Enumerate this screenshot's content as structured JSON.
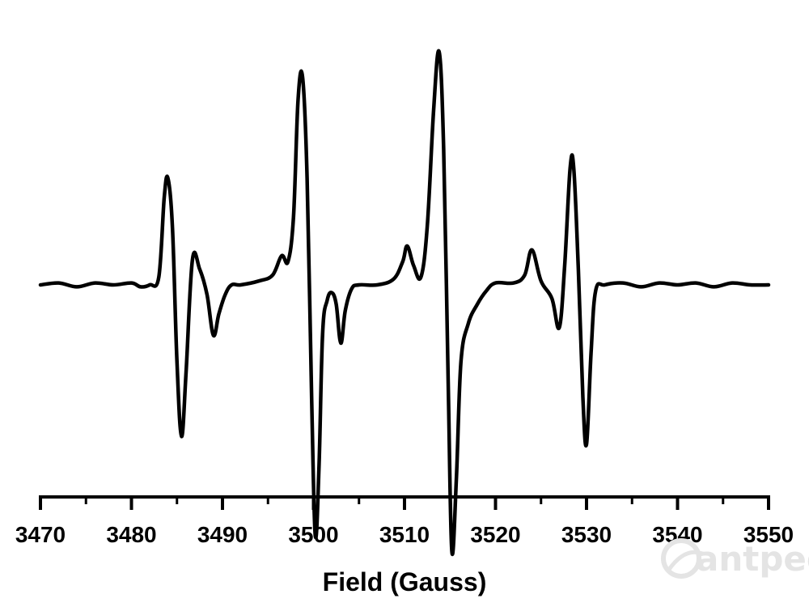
{
  "chart_data": {
    "type": "line",
    "title": "",
    "xlabel": "Field (Gauss)",
    "ylabel": "",
    "xlim": [
      3470,
      3550
    ],
    "ylim": [
      -1,
      1
    ],
    "xticks": [
      3470,
      3480,
      3490,
      3500,
      3510,
      3520,
      3530,
      3540,
      3550
    ],
    "xtick_labels": [
      "3470",
      "3480",
      "3490",
      "3500",
      "3510",
      "3520",
      "3530",
      "3540",
      "3550"
    ],
    "y_axis_visible": false,
    "grid": false,
    "legend": "none",
    "series": [
      {
        "color": "#000000",
        "x": [
          3470,
          3472,
          3474,
          3476,
          3478,
          3480,
          3481,
          3482,
          3483,
          3483.6,
          3484.0,
          3484.5,
          3485.0,
          3485.5,
          3486.0,
          3486.7,
          3487.5,
          3488.3,
          3489.0,
          3489.6,
          3490.3,
          3491.0,
          3492,
          3494,
          3495.5,
          3496.5,
          3497.2,
          3497.8,
          3498.3,
          3498.8,
          3499.3,
          3499.8,
          3500.2,
          3500.6,
          3501.0,
          3501.5,
          3502.0,
          3502.5,
          3503.0,
          3503.5,
          3504.2,
          3505,
          3507,
          3508.8,
          3509.8,
          3510.3,
          3511.0,
          3511.8,
          3512.5,
          3513.2,
          3513.8,
          3514.3,
          3514.8,
          3515.2,
          3515.7,
          3516.2,
          3517.0,
          3518.0,
          3519,
          3520,
          3522,
          3523.2,
          3524.0,
          3525.0,
          3526.2,
          3527.0,
          3527.6,
          3528.2,
          3528.6,
          3529.1,
          3529.6,
          3530.0,
          3530.5,
          3531.0,
          3532,
          3534,
          3536,
          3538,
          3540,
          3542,
          3544,
          3546,
          3548,
          3550
        ],
        "y": [
          0.0,
          0.01,
          -0.01,
          0.01,
          0.0,
          0.01,
          -0.01,
          0.0,
          0.04,
          0.45,
          0.55,
          0.3,
          -0.4,
          -0.78,
          -0.45,
          0.13,
          0.08,
          -0.05,
          -0.26,
          -0.15,
          -0.05,
          0.0,
          0.0,
          0.02,
          0.05,
          0.15,
          0.12,
          0.35,
          0.95,
          1.07,
          0.55,
          -0.6,
          -1.29,
          -0.95,
          -0.25,
          -0.08,
          -0.04,
          -0.1,
          -0.3,
          -0.13,
          -0.02,
          0.0,
          0.0,
          0.03,
          0.12,
          0.2,
          0.1,
          0.04,
          0.3,
          0.9,
          1.2,
          0.7,
          -0.5,
          -1.37,
          -1.0,
          -0.4,
          -0.2,
          -0.1,
          -0.03,
          0.01,
          0.01,
          0.05,
          0.18,
          0.02,
          -0.07,
          -0.22,
          0.1,
          0.6,
          0.6,
          0.08,
          -0.58,
          -0.82,
          -0.35,
          -0.03,
          0.0,
          0.01,
          -0.01,
          0.01,
          0.0,
          0.01,
          -0.01,
          0.01,
          0.0,
          0.0
        ]
      }
    ]
  },
  "watermark": {
    "text": "antpedia",
    "color": "#e4e4e4"
  }
}
